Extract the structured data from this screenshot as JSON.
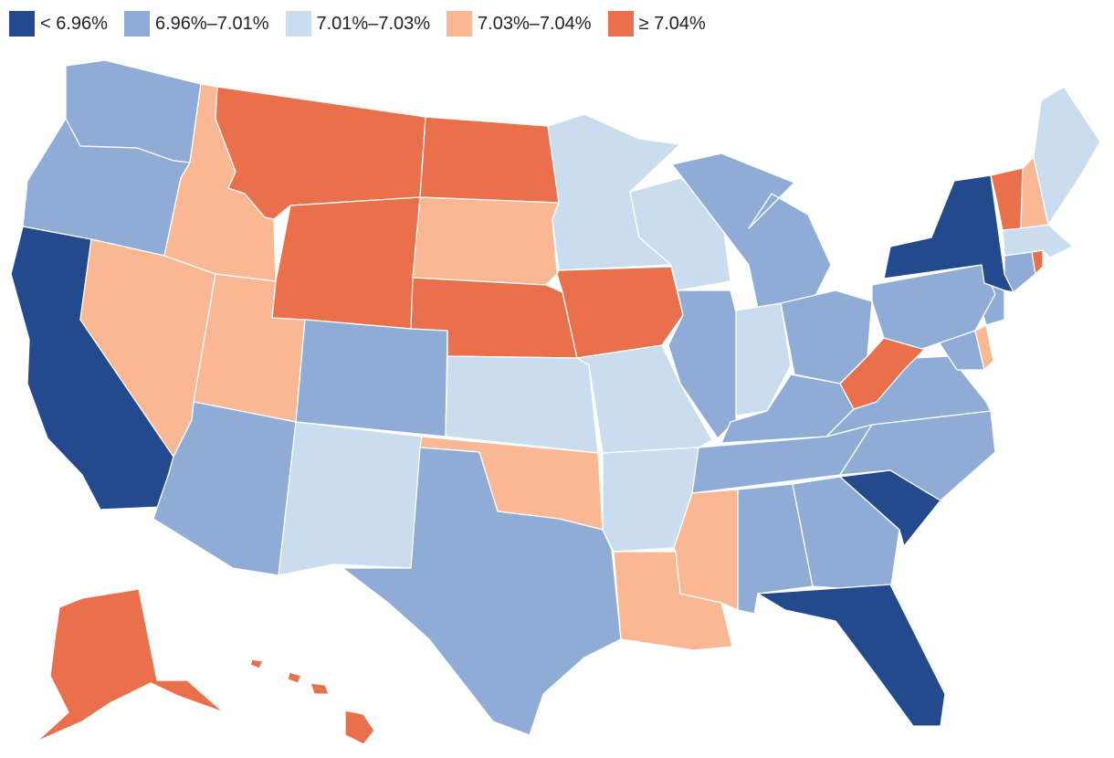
{
  "legend": [
    {
      "label": "< 6.96%",
      "color": "#234a8d"
    },
    {
      "label": "6.96%–7.01%",
      "color": "#8eacd6"
    },
    {
      "label": "7.01%–7.03%",
      "color": "#c9ddee"
    },
    {
      "label": "7.03%–7.04%",
      "color": "#f9b793"
    },
    {
      "label": "≥ 7.04%",
      "color": "#ea6f4b"
    }
  ],
  "states": [
    {
      "id": "WA",
      "class": 1
    },
    {
      "id": "OR",
      "class": 1
    },
    {
      "id": "CA",
      "class": 0
    },
    {
      "id": "ID",
      "class": 3
    },
    {
      "id": "NV",
      "class": 3
    },
    {
      "id": "UT",
      "class": 3
    },
    {
      "id": "AZ",
      "class": 1
    },
    {
      "id": "MT",
      "class": 4
    },
    {
      "id": "WY",
      "class": 4
    },
    {
      "id": "CO",
      "class": 1
    },
    {
      "id": "NM",
      "class": 2
    },
    {
      "id": "ND",
      "class": 4
    },
    {
      "id": "SD",
      "class": 3
    },
    {
      "id": "NE",
      "class": 4
    },
    {
      "id": "KS",
      "class": 2
    },
    {
      "id": "OK",
      "class": 3
    },
    {
      "id": "TX",
      "class": 1
    },
    {
      "id": "MN",
      "class": 2
    },
    {
      "id": "IA",
      "class": 4
    },
    {
      "id": "MO",
      "class": 2
    },
    {
      "id": "AR",
      "class": 2
    },
    {
      "id": "LA",
      "class": 3
    },
    {
      "id": "WI",
      "class": 2
    },
    {
      "id": "IL",
      "class": 1
    },
    {
      "id": "MI",
      "class": 1
    },
    {
      "id": "IN",
      "class": 2
    },
    {
      "id": "OH",
      "class": 1
    },
    {
      "id": "KY",
      "class": 1
    },
    {
      "id": "TN",
      "class": 1
    },
    {
      "id": "MS",
      "class": 3
    },
    {
      "id": "AL",
      "class": 1
    },
    {
      "id": "GA",
      "class": 1
    },
    {
      "id": "FL",
      "class": 0
    },
    {
      "id": "SC",
      "class": 0
    },
    {
      "id": "NC",
      "class": 1
    },
    {
      "id": "VA",
      "class": 1
    },
    {
      "id": "WV",
      "class": 4
    },
    {
      "id": "MD",
      "class": 1
    },
    {
      "id": "DE",
      "class": 3
    },
    {
      "id": "NJ",
      "class": 1
    },
    {
      "id": "PA",
      "class": 1
    },
    {
      "id": "NY",
      "class": 0
    },
    {
      "id": "CT",
      "class": 1
    },
    {
      "id": "RI",
      "class": 4
    },
    {
      "id": "MA",
      "class": 2
    },
    {
      "id": "VT",
      "class": 4
    },
    {
      "id": "NH",
      "class": 3
    },
    {
      "id": "ME",
      "class": 2
    },
    {
      "id": "AK",
      "class": 4
    },
    {
      "id": "HI",
      "class": 4
    }
  ]
}
